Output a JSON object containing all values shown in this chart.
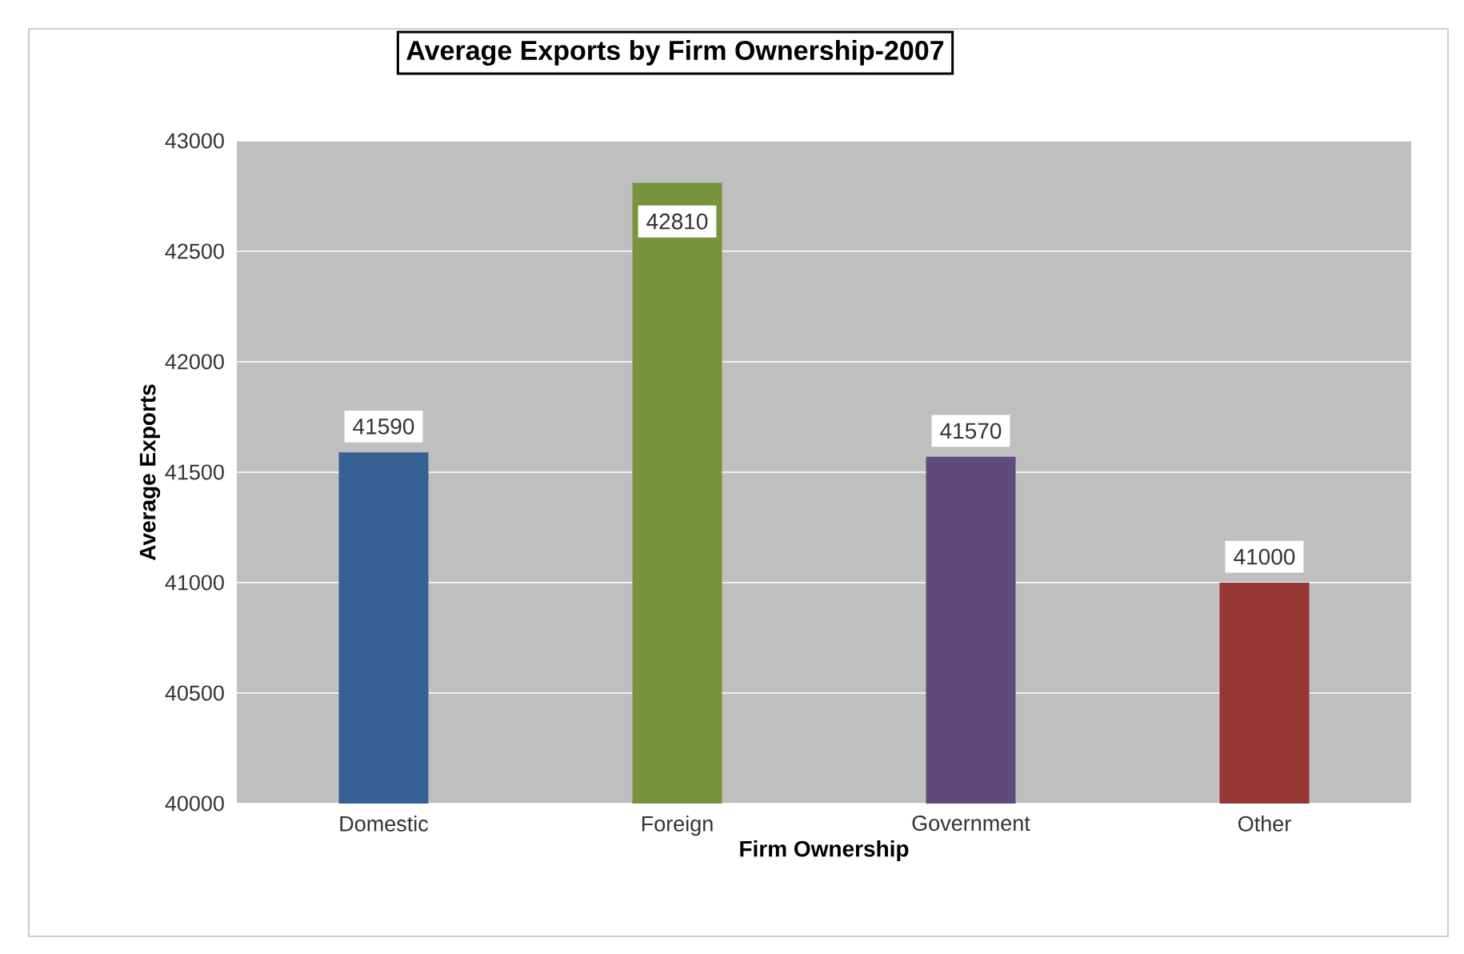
{
  "chart_data": {
    "type": "bar",
    "title": "Average  Exports by Firm Ownership-2007",
    "xlabel": "Firm Ownership",
    "ylabel": "Average Exports",
    "categories": [
      "Domestic",
      "Foreign",
      "Government",
      "Other"
    ],
    "values": [
      41590,
      42810,
      41570,
      41000
    ],
    "colors": [
      "#366092",
      "#77933c",
      "#604a7b",
      "#953735"
    ],
    "ylim": [
      40000,
      43000
    ],
    "yticks": [
      40000,
      40500,
      41000,
      41500,
      42000,
      42500,
      43000
    ],
    "grid": "y",
    "data_labels": true,
    "legend": false
  }
}
